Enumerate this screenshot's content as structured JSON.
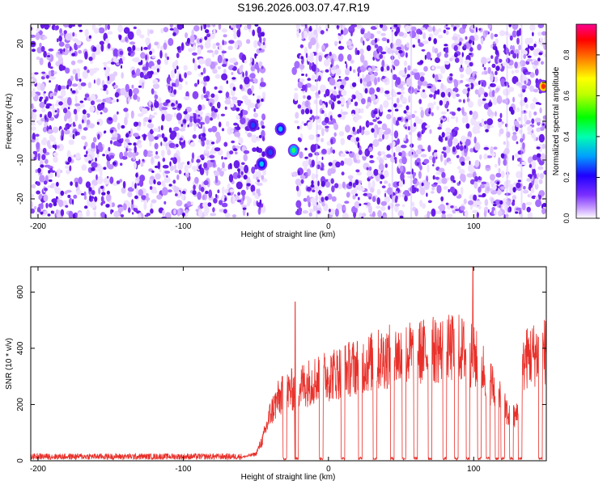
{
  "figure": {
    "title": "S196.2026.003.07.47.R19"
  },
  "chart_data": [
    {
      "type": "heatmap",
      "xlabel": "Height of straight line (km)",
      "ylabel": "Frequency (Hz)",
      "xlim": [
        -205,
        150
      ],
      "ylim": [
        -25,
        25
      ],
      "xticks": [
        -200,
        -100,
        0,
        100
      ],
      "yticks": [
        -20,
        -10,
        0,
        10,
        20
      ],
      "blank_band_km": [
        -44,
        -24
      ],
      "colorbar": {
        "label": "Normalized spectral amplitude",
        "range": [
          0,
          0.95
        ],
        "ticks": [
          "0.0",
          "0.2",
          "0.4",
          "0.6",
          "0.8"
        ],
        "colors": [
          "#ffffff",
          "#b060ff",
          "#4000ff",
          "#00a0ff",
          "#00ffaa",
          "#00ff00",
          "#ffff00",
          "#ff8000",
          "#ff0000",
          "#ff0080"
        ]
      },
      "hotspots": [
        {
          "x": -52,
          "y": -1,
          "value": 0.25
        },
        {
          "x": -46,
          "y": -11,
          "value": 0.35
        },
        {
          "x": -40,
          "y": -8,
          "value": 0.2
        },
        {
          "x": -33,
          "y": -2,
          "value": 0.3
        },
        {
          "x": -24,
          "y": -7.5,
          "value": 0.5
        },
        {
          "x": 148,
          "y": 9,
          "value": 0.9
        }
      ]
    },
    {
      "type": "line",
      "xlabel": "Height of straight line (km)",
      "ylabel": "SNR (10 * v/v)",
      "xlim": [
        -205,
        150
      ],
      "ylim": [
        0,
        690
      ],
      "xticks": [
        -200,
        -100,
        0,
        100
      ],
      "yticks": [
        0,
        200,
        400,
        600
      ],
      "color": "#e8302a",
      "envelope": {
        "x": [
          -205,
          -60,
          -50,
          -45,
          -40,
          -35,
          -30,
          -20,
          -10,
          0,
          10,
          20,
          30,
          40,
          50,
          60,
          70,
          80,
          90,
          95,
          100,
          105,
          110,
          115,
          120,
          125,
          130,
          135,
          140,
          145,
          150
        ],
        "y": [
          15,
          15,
          30,
          100,
          210,
          270,
          300,
          330,
          360,
          380,
          400,
          420,
          440,
          460,
          470,
          480,
          490,
          495,
          500,
          480,
          460,
          420,
          380,
          300,
          250,
          190,
          200,
          450,
          470,
          480,
          490
        ]
      },
      "spikes": [
        {
          "x": -23,
          "y": 565
        },
        {
          "x": 99.5,
          "y": 690
        }
      ],
      "gaps_km": [
        -30,
        -22,
        -5,
        10,
        22,
        32,
        44,
        52,
        60,
        70,
        80,
        88,
        96,
        104,
        110,
        116,
        120,
        126,
        132,
        146
      ]
    }
  ]
}
